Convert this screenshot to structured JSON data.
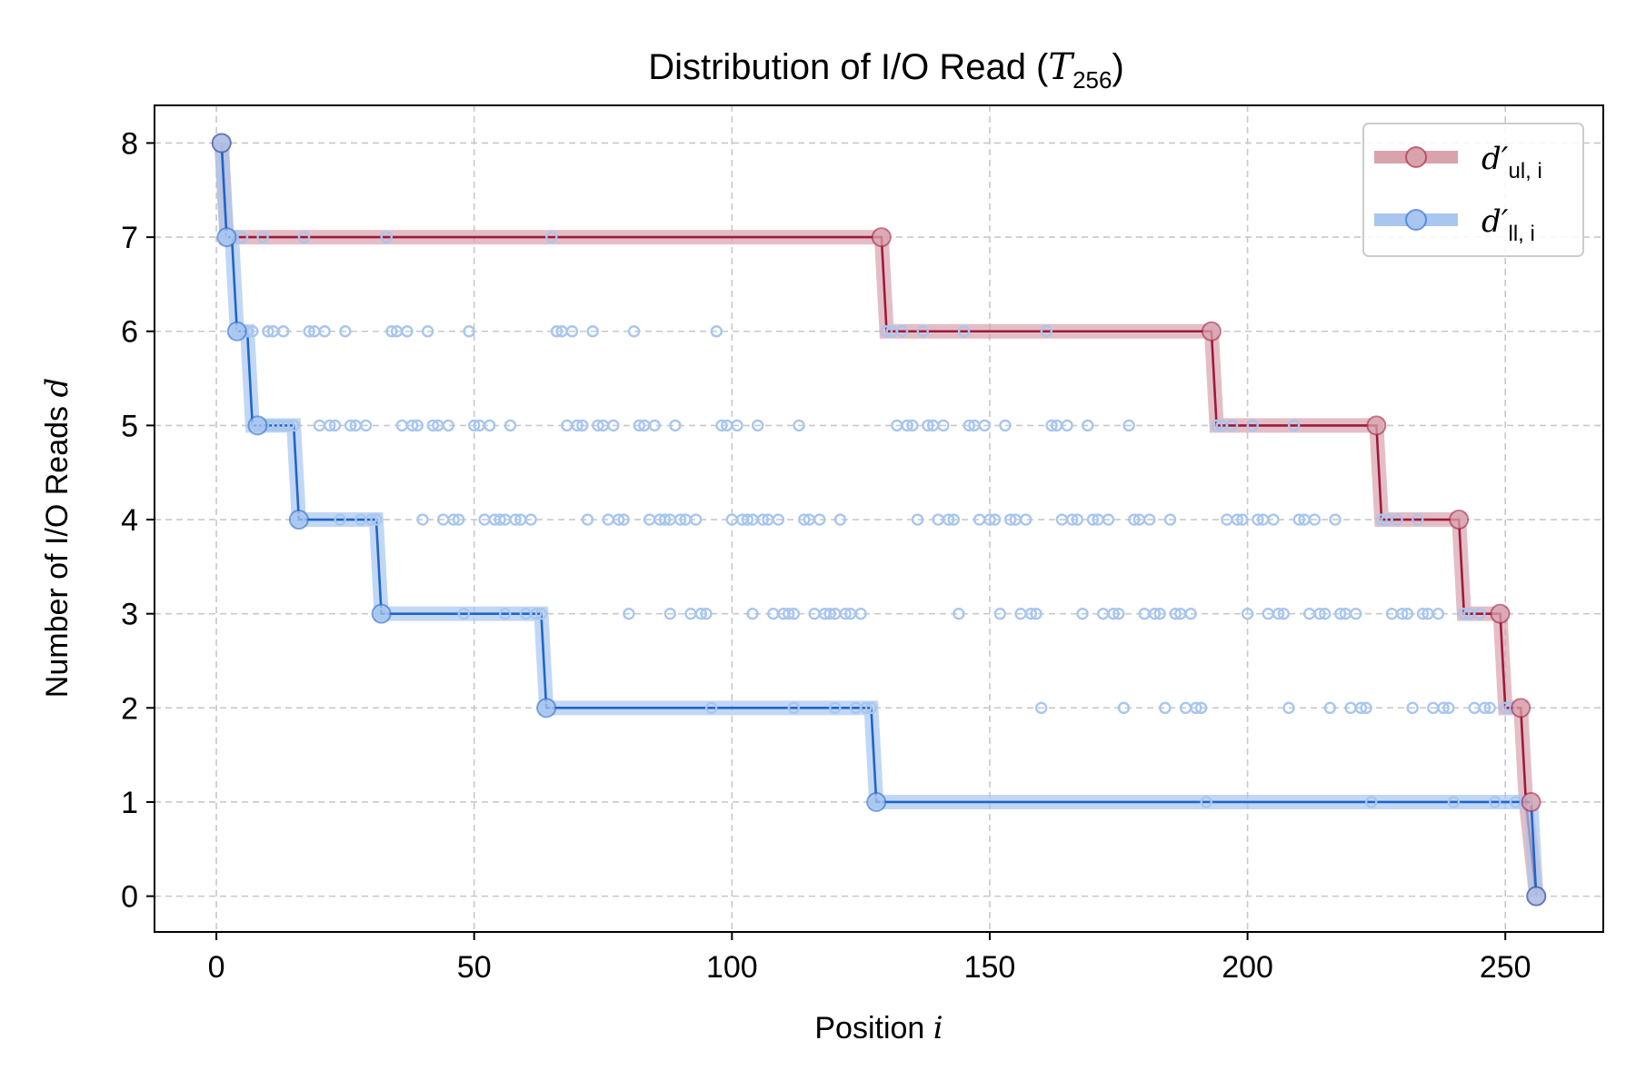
{
  "chart_data": {
    "type": "line",
    "title": {
      "prefix": "Distribution of I/O Read (",
      "var": "T",
      "sub": "256",
      "suffix": ")"
    },
    "xlabel": {
      "text": "Position ",
      "var": "i"
    },
    "ylabel": {
      "text": "Number of I/O Reads ",
      "var": "d"
    },
    "xlim": [
      -12,
      269
    ],
    "ylim": [
      -0.38,
      8.4
    ],
    "xticks": [
      0,
      50,
      100,
      150,
      200,
      250
    ],
    "yticks": [
      0,
      1,
      2,
      3,
      4,
      5,
      6,
      7,
      8
    ],
    "grid": true,
    "legend_position": "top-right",
    "series": [
      {
        "name": "d′ul,i",
        "legend": {
          "base": "d′",
          "sub": "ul, i"
        },
        "color": "#9e1a3c",
        "light_color": "#d9a3ae",
        "step_x": [
          1,
          2,
          129,
          130,
          193,
          194,
          225,
          226,
          241,
          242,
          249,
          250,
          253,
          254,
          256
        ],
        "step_y": [
          8,
          7,
          7,
          6,
          6,
          5,
          5,
          4,
          4,
          3,
          3,
          2,
          2,
          1,
          0
        ],
        "highlight_x": [
          1,
          129,
          193,
          225,
          241,
          249,
          253,
          255,
          256
        ],
        "highlight_y": [
          8,
          7,
          6,
          5,
          4,
          3,
          2,
          1,
          0
        ]
      },
      {
        "name": "d′ll,i",
        "legend": {
          "base": "d′",
          "sub": "ll, i"
        },
        "color": "#1f66c9",
        "light_color": "#a8c6ef",
        "step_x": [
          1,
          2,
          3,
          4,
          6,
          7,
          8,
          15,
          16,
          31,
          32,
          63,
          64,
          127,
          128,
          255,
          256
        ],
        "step_y": [
          8,
          7,
          7,
          6,
          6,
          5,
          5,
          5,
          4,
          4,
          3,
          3,
          2,
          2,
          1,
          1,
          0
        ],
        "highlight_x": [
          1,
          2,
          4,
          8,
          16,
          32,
          64,
          128,
          256
        ],
        "highlight_y": [
          8,
          7,
          6,
          5,
          4,
          3,
          2,
          1,
          0
        ]
      }
    ],
    "scatter_points": [
      {
        "y": 7,
        "x": [
          2,
          3,
          5,
          9,
          17,
          33,
          65
        ]
      },
      {
        "y": 6,
        "x": [
          4,
          5,
          6,
          7,
          10,
          11,
          13,
          18,
          19,
          21,
          25,
          34,
          35,
          37,
          41,
          49,
          66,
          67,
          69,
          73,
          81,
          97,
          130,
          131,
          133,
          137,
          145,
          161
        ]
      },
      {
        "y": 5,
        "x": [
          8,
          9,
          10,
          11,
          12,
          13,
          14,
          15,
          20,
          22,
          23,
          26,
          27,
          29,
          36,
          38,
          39,
          42,
          43,
          45,
          50,
          51,
          53,
          57,
          68,
          70,
          71,
          74,
          75,
          77,
          82,
          83,
          85,
          89,
          98,
          99,
          101,
          105,
          113,
          132,
          134,
          135,
          138,
          139,
          141,
          146,
          147,
          149,
          153,
          162,
          163,
          165,
          169,
          177,
          194,
          195,
          197,
          201,
          209
        ]
      },
      {
        "y": 4,
        "x": [
          16,
          24,
          28,
          30,
          31,
          40,
          44,
          46,
          47,
          52,
          54,
          55,
          56,
          58,
          59,
          61,
          72,
          76,
          78,
          79,
          84,
          86,
          87,
          88,
          90,
          91,
          93,
          100,
          102,
          103,
          104,
          106,
          107,
          109,
          114,
          115,
          117,
          121,
          136,
          140,
          142,
          143,
          148,
          150,
          151,
          154,
          155,
          157,
          164,
          166,
          167,
          170,
          171,
          173,
          178,
          179,
          181,
          185,
          196,
          198,
          199,
          202,
          203,
          205,
          210,
          211,
          213,
          217,
          226,
          227,
          229,
          233
        ]
      },
      {
        "y": 3,
        "x": [
          32,
          48,
          56,
          60,
          62,
          63,
          80,
          88,
          92,
          94,
          95,
          104,
          108,
          110,
          111,
          112,
          116,
          118,
          119,
          120,
          122,
          123,
          125,
          144,
          152,
          156,
          158,
          159,
          168,
          172,
          174,
          175,
          180,
          182,
          183,
          186,
          187,
          189,
          200,
          204,
          206,
          207,
          212,
          214,
          215,
          218,
          219,
          221,
          228,
          230,
          231,
          234,
          235,
          237,
          242,
          243,
          245
        ]
      },
      {
        "y": 2,
        "x": [
          64,
          96,
          112,
          120,
          124,
          126,
          127,
          160,
          176,
          184,
          188,
          190,
          191,
          208,
          216,
          220,
          222,
          223,
          232,
          236,
          238,
          239,
          244,
          246,
          247,
          250,
          251
        ]
      },
      {
        "y": 1,
        "x": [
          128,
          192,
          224,
          240,
          248,
          252,
          254
        ]
      }
    ]
  }
}
